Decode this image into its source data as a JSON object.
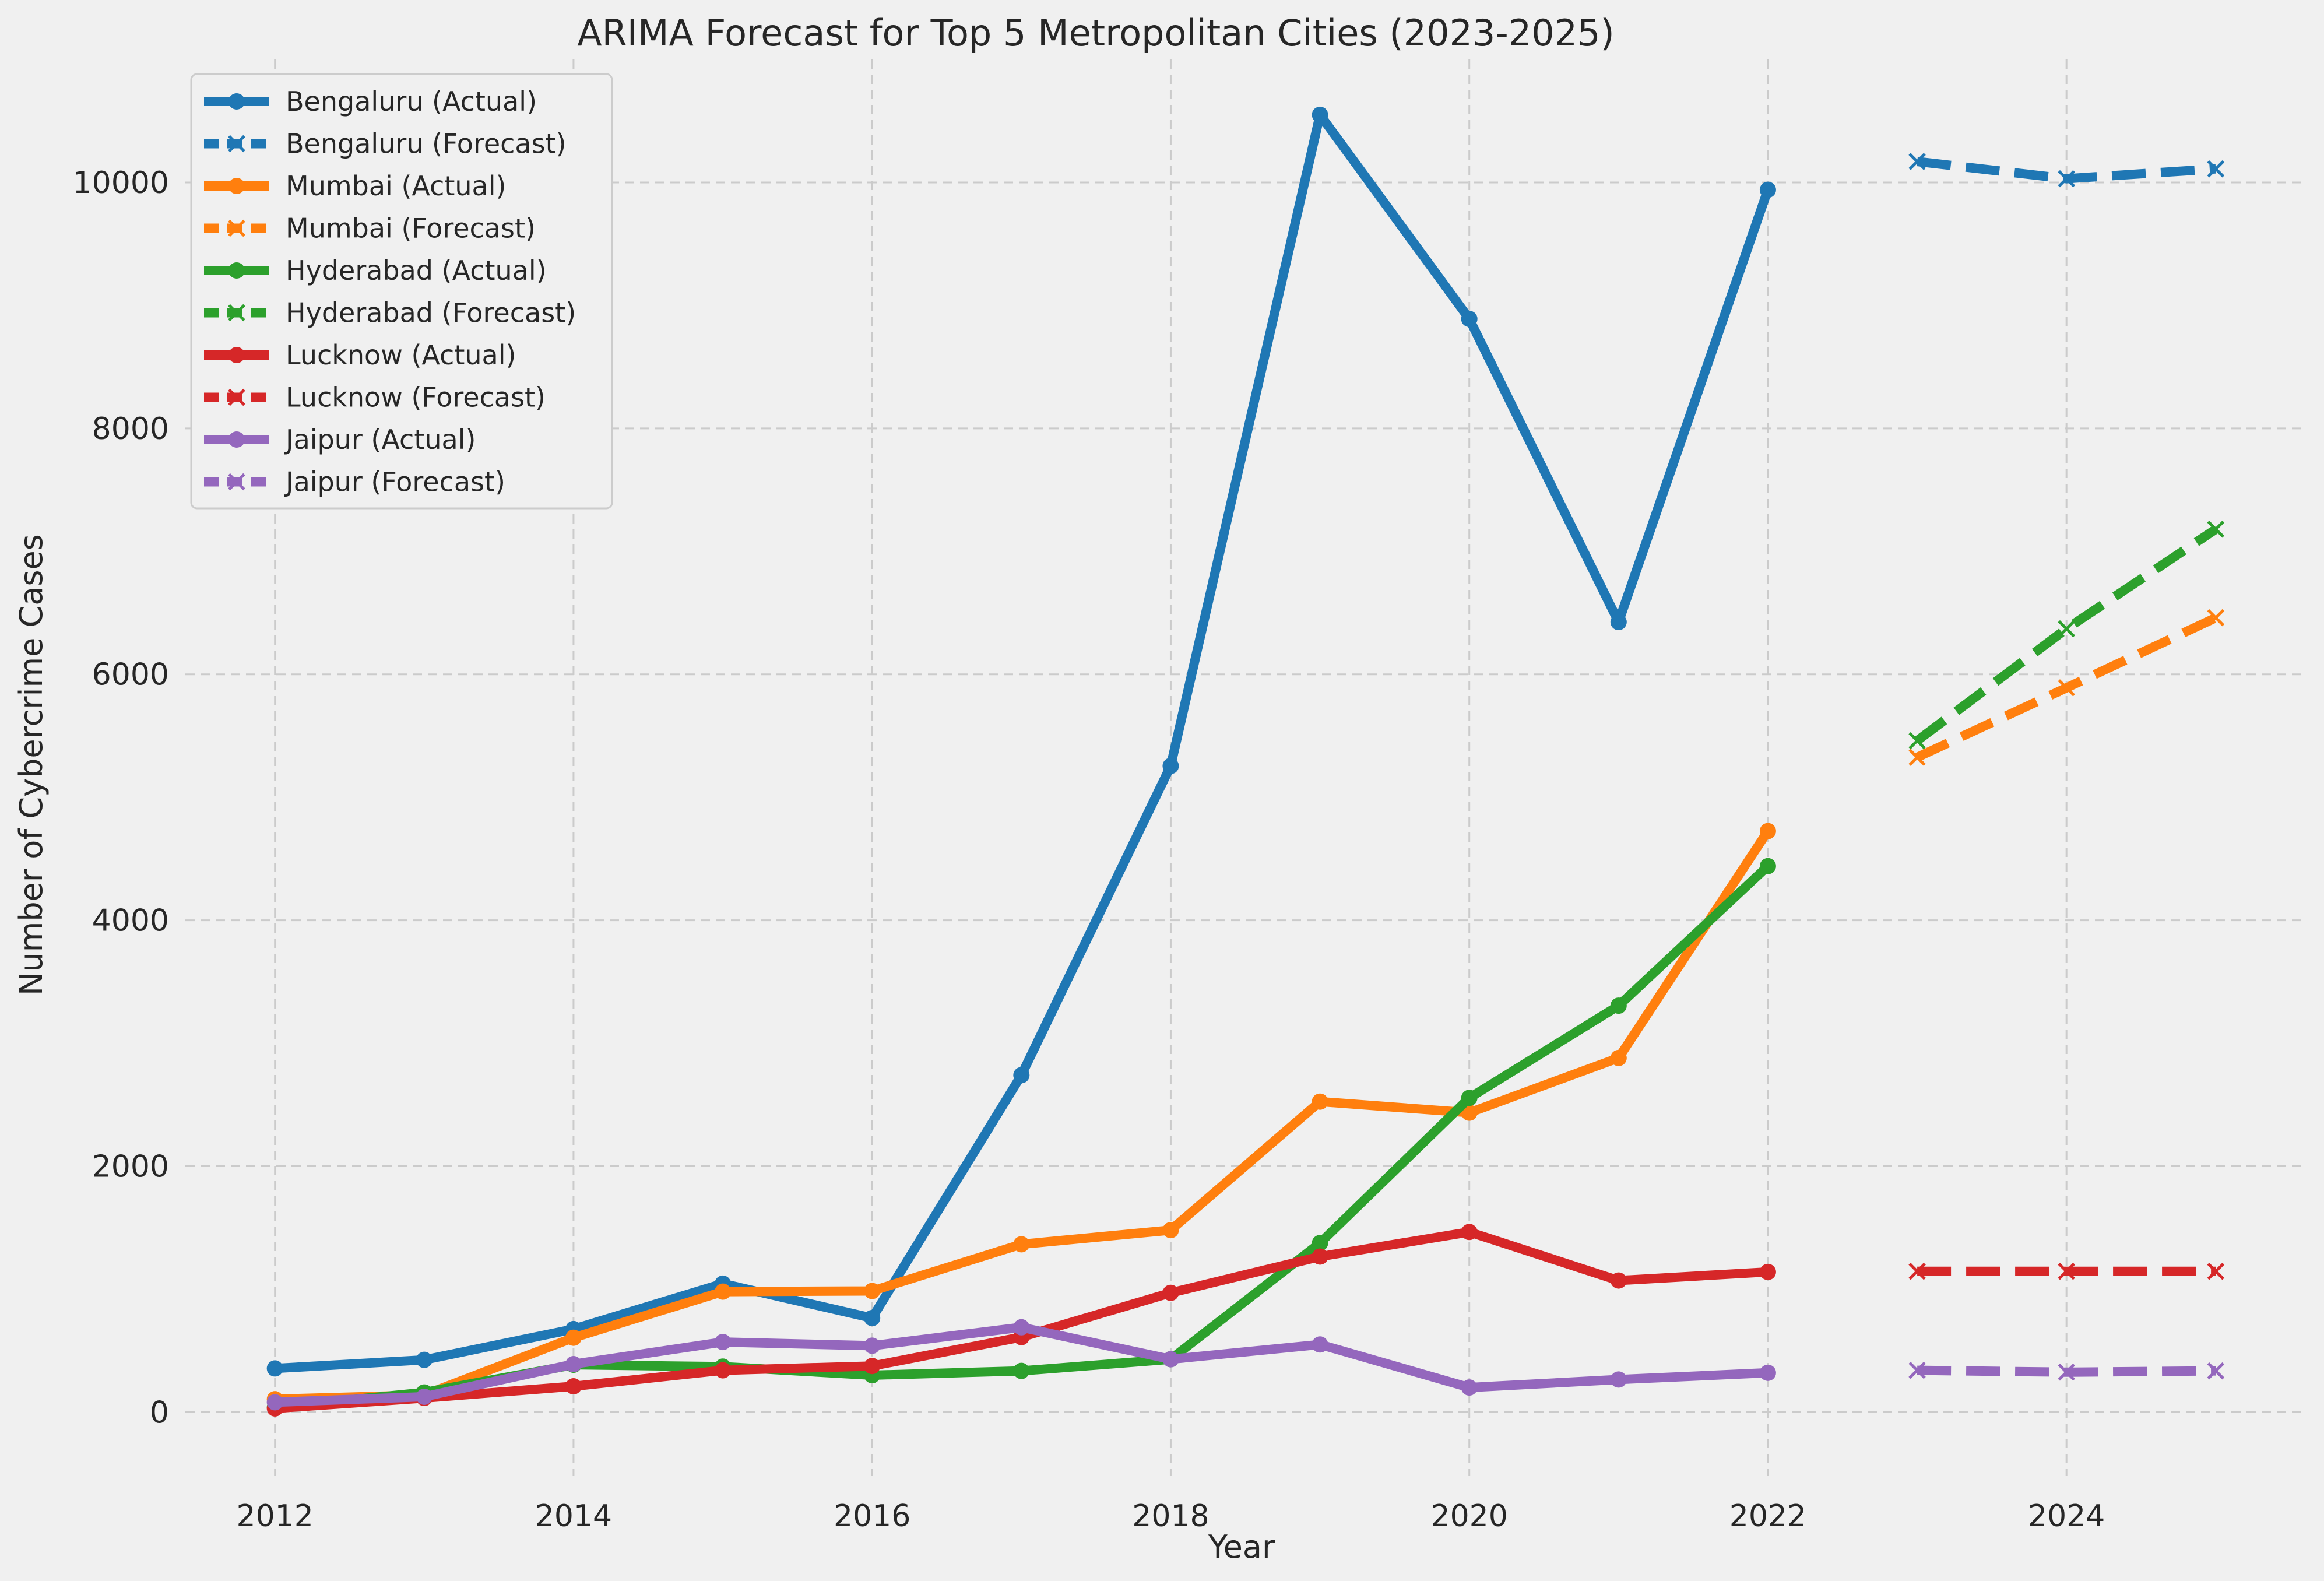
{
  "chart_data": {
    "type": "line",
    "title": "ARIMA Forecast for Top 5 Metropolitan Cities (2023-2025)",
    "xlabel": "Year",
    "ylabel": "Number of Cybercrime Cases",
    "xlim": [
      2011.4,
      2025.6
    ],
    "ylim": [
      -520,
      11000
    ],
    "xticks": [
      2012,
      2014,
      2016,
      2018,
      2020,
      2022,
      2024
    ],
    "yticks": [
      0,
      2000,
      4000,
      6000,
      8000,
      10000
    ],
    "grid": true,
    "legend_position": "top-left",
    "series": [
      {
        "name": "Bengaluru (Actual)",
        "color": "#1f77b4",
        "style": "solid",
        "marker": "circle",
        "x": [
          2012,
          2013,
          2014,
          2015,
          2016,
          2017,
          2018,
          2019,
          2020,
          2021,
          2022
        ],
        "y": [
          355,
          425,
          675,
          1045,
          765,
          2740,
          5255,
          10550,
          8890,
          6425,
          9940
        ]
      },
      {
        "name": "Bengaluru (Forecast)",
        "color": "#1f77b4",
        "style": "dashed",
        "marker": "x",
        "x": [
          2023,
          2024,
          2025
        ],
        "y": [
          10170,
          10030,
          10110
        ]
      },
      {
        "name": "Mumbai (Actual)",
        "color": "#ff7f0e",
        "style": "solid",
        "marker": "circle",
        "x": [
          2012,
          2013,
          2014,
          2015,
          2016,
          2017,
          2018,
          2019,
          2020,
          2021,
          2022
        ],
        "y": [
          105,
          140,
          605,
          980,
          985,
          1365,
          1480,
          2525,
          2435,
          2880,
          4725
        ]
      },
      {
        "name": "Mumbai (Forecast)",
        "color": "#ff7f0e",
        "style": "dashed",
        "marker": "x",
        "x": [
          2023,
          2024,
          2025
        ],
        "y": [
          5325,
          5890,
          6460
        ]
      },
      {
        "name": "Hyderabad (Actual)",
        "color": "#2ca02c",
        "style": "solid",
        "marker": "circle",
        "x": [
          2012,
          2013,
          2014,
          2015,
          2016,
          2017,
          2018,
          2019,
          2020,
          2021,
          2022
        ],
        "y": [
          40,
          160,
          385,
          370,
          300,
          335,
          430,
          1375,
          2555,
          3305,
          4440
        ]
      },
      {
        "name": "Hyderabad (Forecast)",
        "color": "#2ca02c",
        "style": "dashed",
        "marker": "x",
        "x": [
          2023,
          2024,
          2025
        ],
        "y": [
          5460,
          6370,
          7180
        ]
      },
      {
        "name": "Lucknow (Actual)",
        "color": "#d62728",
        "style": "solid",
        "marker": "circle",
        "x": [
          2012,
          2013,
          2014,
          2015,
          2016,
          2017,
          2018,
          2019,
          2020,
          2021,
          2022
        ],
        "y": [
          30,
          115,
          210,
          340,
          375,
          610,
          970,
          1265,
          1465,
          1070,
          1140
        ]
      },
      {
        "name": "Lucknow (Forecast)",
        "color": "#d62728",
        "style": "dashed",
        "marker": "x",
        "x": [
          2023,
          2024,
          2025
        ],
        "y": [
          1145,
          1145,
          1145
        ]
      },
      {
        "name": "Jaipur (Actual)",
        "color": "#9467bd",
        "style": "solid",
        "marker": "circle",
        "x": [
          2012,
          2013,
          2014,
          2015,
          2016,
          2017,
          2018,
          2019,
          2020,
          2021,
          2022
        ],
        "y": [
          80,
          125,
          390,
          570,
          540,
          690,
          430,
          550,
          200,
          265,
          320
        ]
      },
      {
        "name": "Jaipur (Forecast)",
        "color": "#9467bd",
        "style": "dashed",
        "marker": "x",
        "x": [
          2023,
          2024,
          2025
        ],
        "y": [
          340,
          325,
          335
        ]
      }
    ]
  }
}
